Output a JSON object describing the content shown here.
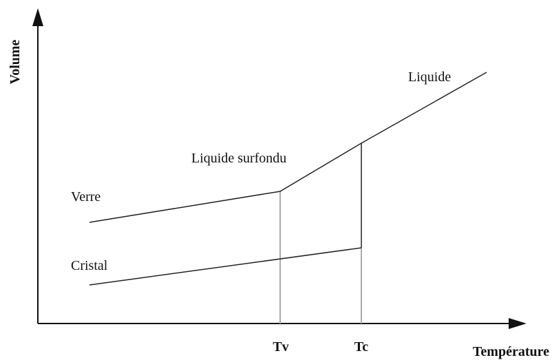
{
  "axes": {
    "y_label": "Volume",
    "x_label": "Température",
    "x_marks": [
      "Tv",
      "Tc"
    ]
  },
  "curves": {
    "liquid": "Liquide",
    "supercooled": "Liquide surfondu",
    "glass": "Verre",
    "crystal": "Cristal"
  }
}
